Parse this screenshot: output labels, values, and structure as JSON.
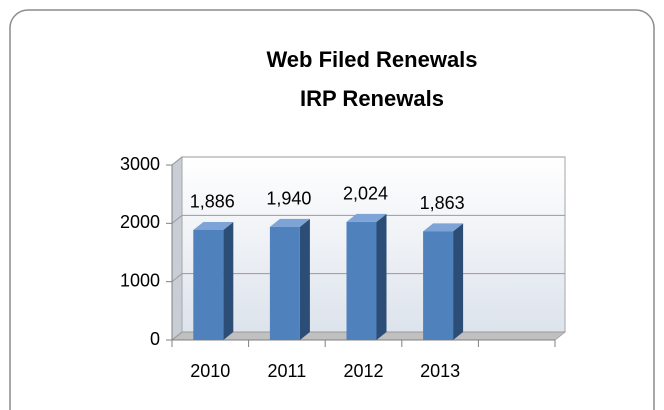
{
  "chart_data": {
    "type": "bar3d",
    "title": "Web Filed Renewals",
    "subtitle": "IRP Renewals",
    "categories": [
      "2010",
      "2011",
      "2012",
      "2013",
      null
    ],
    "values": [
      1886,
      1940,
      2024,
      1863,
      null
    ],
    "value_labels": [
      "1,886",
      "1,940",
      "2,024",
      "1,863",
      null
    ],
    "color": "#4f81bd",
    "ylim": [
      0,
      3000
    ],
    "yticks": [
      0,
      1000,
      2000,
      3000
    ],
    "grid": true
  }
}
